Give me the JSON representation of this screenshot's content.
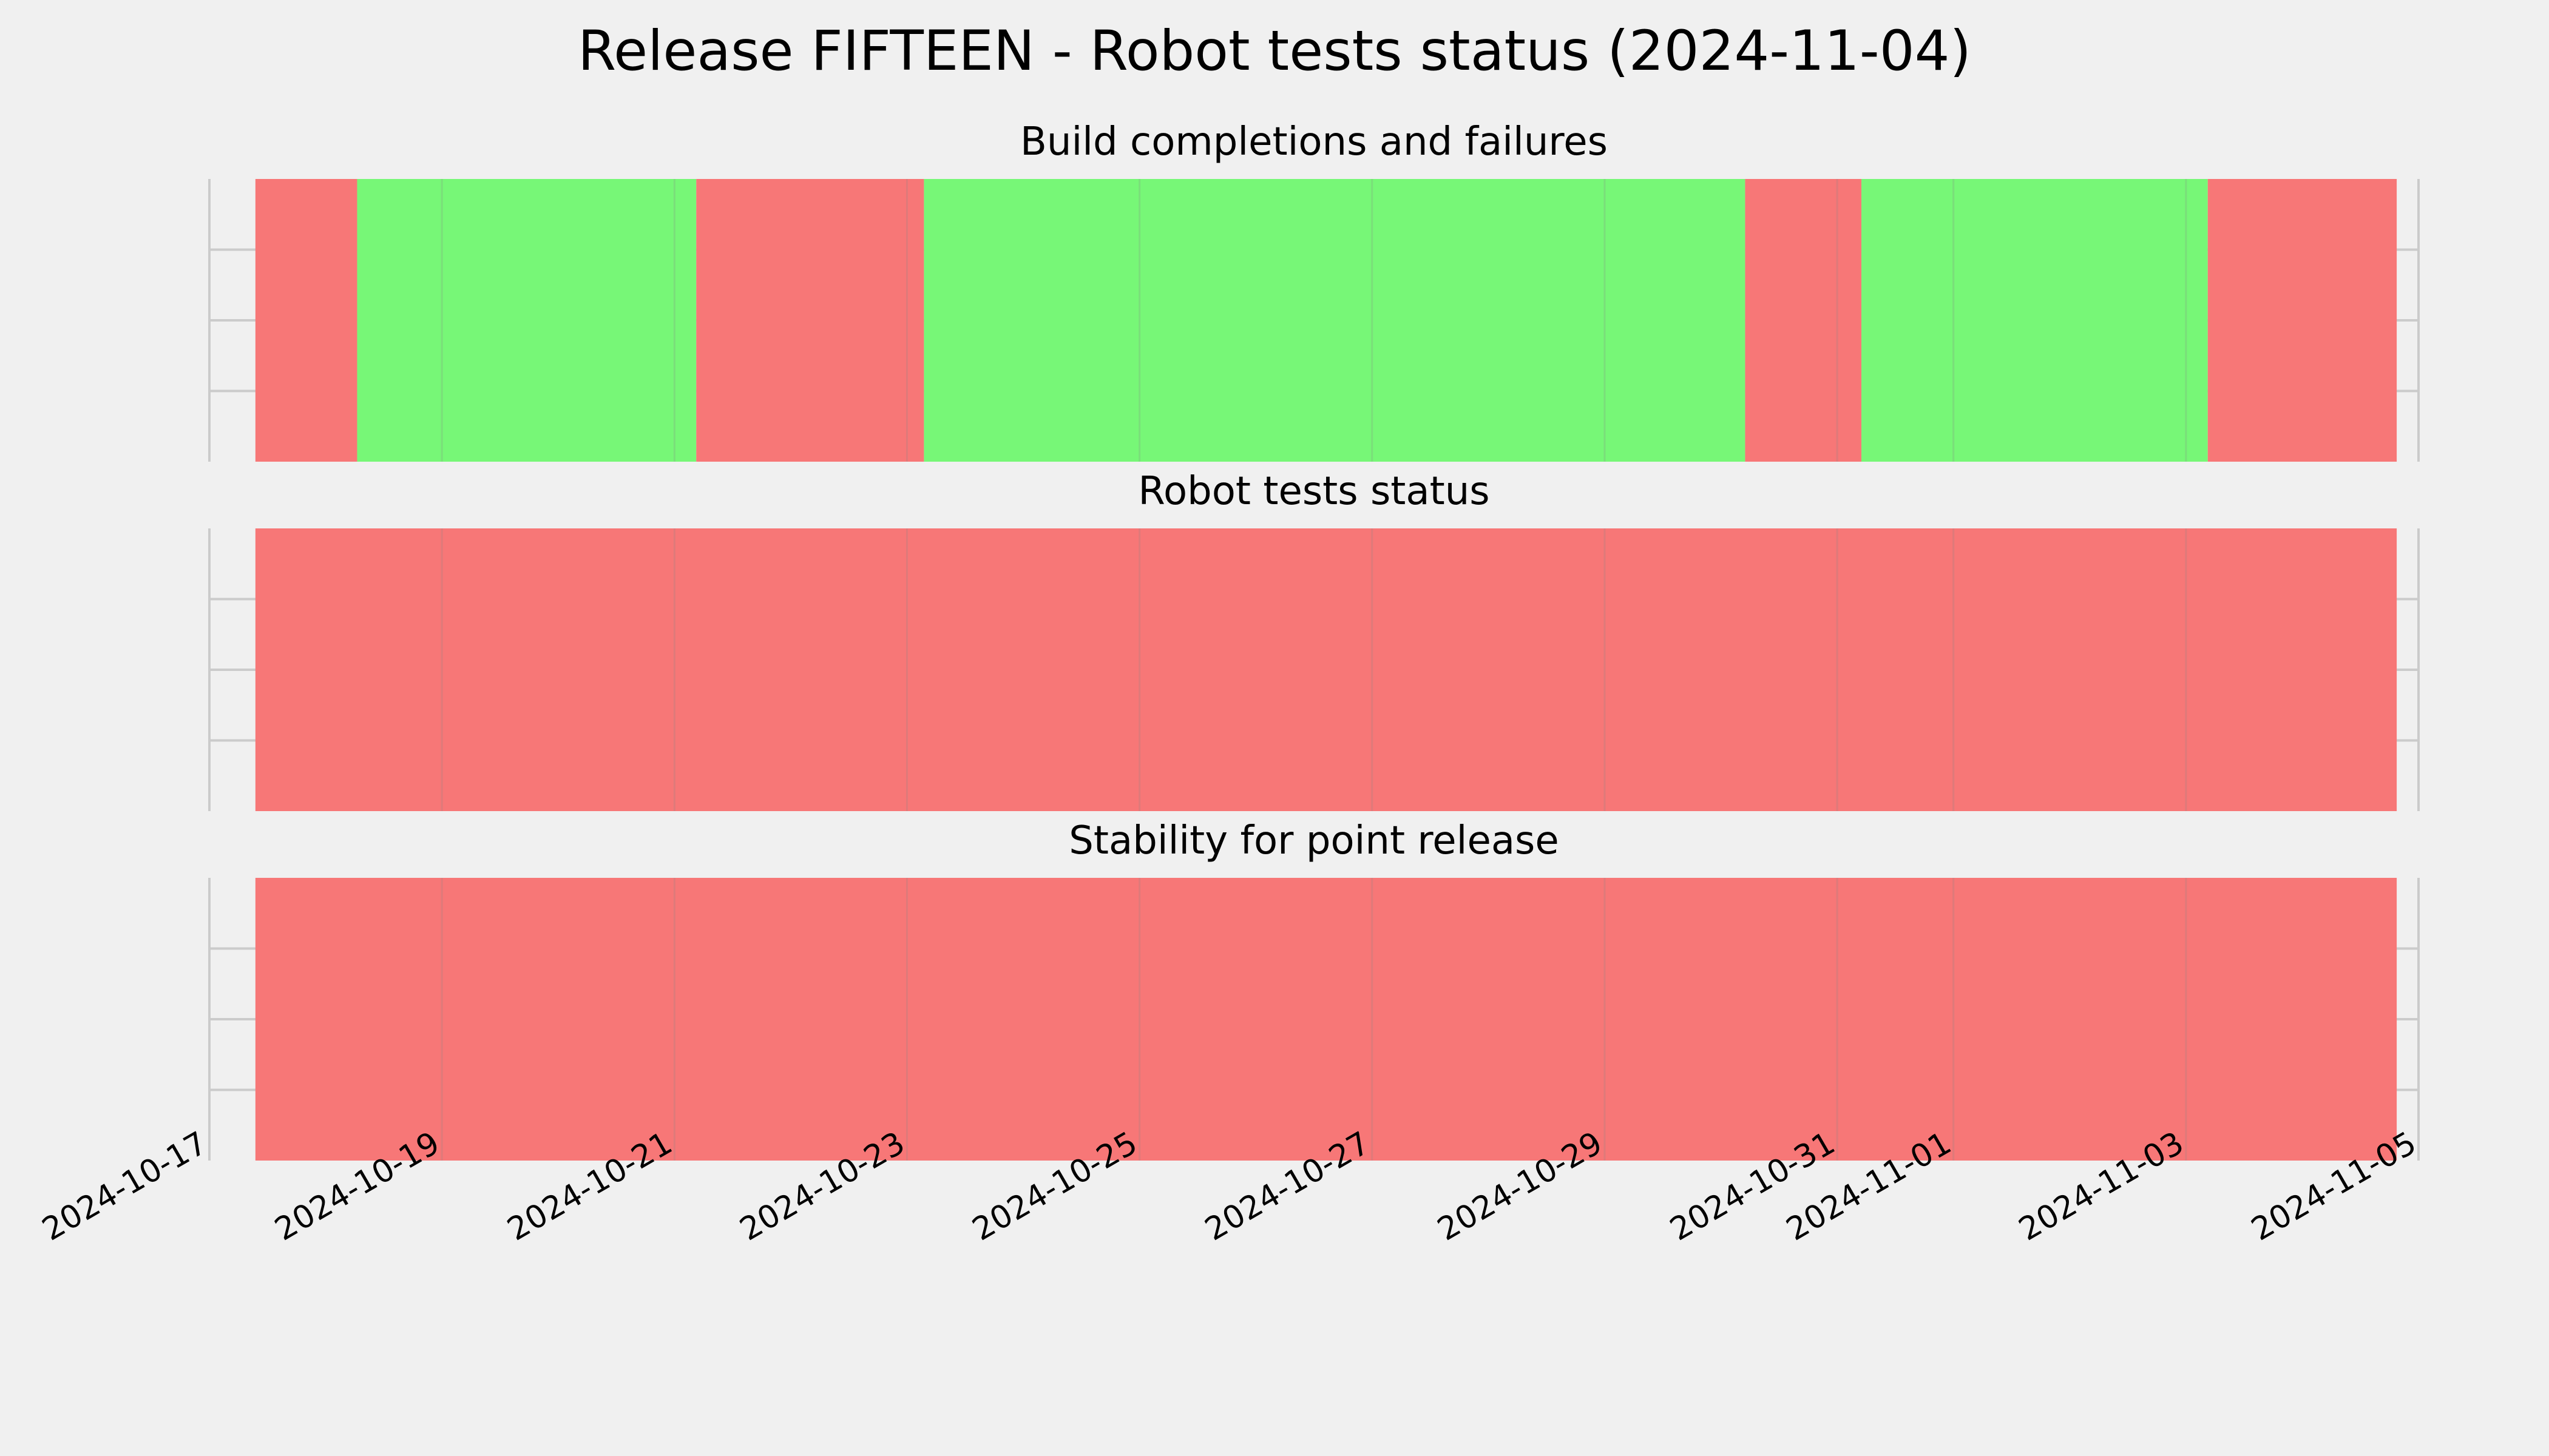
{
  "chart_data": {
    "type": "timeline",
    "title": "Release FIFTEEN - Robot tests status (2024-11-04)",
    "x_axis": {
      "type": "date",
      "range": [
        "2024-10-17",
        "2024-11-05"
      ],
      "tick_labels": [
        "2024-10-17",
        "2024-10-19",
        "2024-10-21",
        "2024-10-23",
        "2024-10-25",
        "2024-10-27",
        "2024-10-29",
        "2024-10-31",
        "2024-11-01",
        "2024-11-03",
        "2024-11-05"
      ]
    },
    "grid": true,
    "status_colors": {
      "pass": "#77f777",
      "fail": "#f77777"
    },
    "panels": [
      {
        "title": "Build completions and failures",
        "segments": [
          {
            "start": "2024-10-17T09:30",
            "end": "2024-10-18T06:30",
            "status": "fail"
          },
          {
            "start": "2024-10-18T06:30",
            "end": "2024-10-21T04:30",
            "status": "pass"
          },
          {
            "start": "2024-10-21T04:30",
            "end": "2024-10-23T03:30",
            "status": "fail"
          },
          {
            "start": "2024-10-23T03:30",
            "end": "2024-10-30T05:00",
            "status": "pass"
          },
          {
            "start": "2024-10-30T05:00",
            "end": "2024-10-31T05:00",
            "status": "fail"
          },
          {
            "start": "2024-10-31T05:00",
            "end": "2024-11-03T04:30",
            "status": "pass"
          },
          {
            "start": "2024-11-03T04:30",
            "end": "2024-11-04T19:30",
            "status": "fail"
          }
        ]
      },
      {
        "title": "Robot tests status",
        "segments": [
          {
            "start": "2024-10-17T09:30",
            "end": "2024-11-04T19:30",
            "status": "fail"
          }
        ]
      },
      {
        "title": "Stability for point release",
        "segments": [
          {
            "start": "2024-10-17T09:30",
            "end": "2024-11-04T19:30",
            "status": "fail"
          }
        ]
      }
    ]
  }
}
